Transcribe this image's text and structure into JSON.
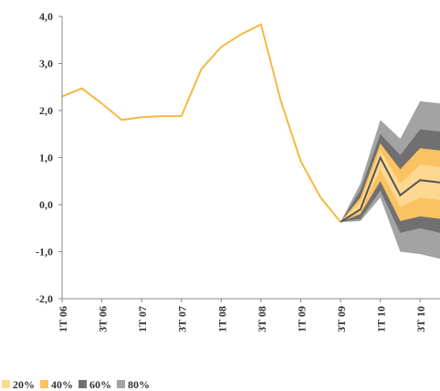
{
  "chart_data": {
    "type": "fan",
    "categories": [
      "1T 06",
      null,
      "3T 06",
      null,
      "1T 07",
      null,
      "3T 07",
      null,
      "1T 08",
      null,
      "3T 08",
      null,
      "1T 09",
      null,
      "3T 09",
      null,
      "1T 10",
      null,
      "3T 10",
      null
    ],
    "ylim": [
      -2,
      4
    ],
    "yticks": [
      {
        "value": -2,
        "label": "-2,0"
      },
      {
        "value": -1,
        "label": "-1,0"
      },
      {
        "value": 0,
        "label": "0,0"
      },
      {
        "value": 1,
        "label": "1,0"
      },
      {
        "value": 2,
        "label": "2,0"
      },
      {
        "value": 3,
        "label": "3,0"
      },
      {
        "value": 4,
        "label": "4,0"
      }
    ],
    "series": [
      {
        "color": "#f5b942",
        "values": [
          2.3,
          2.47,
          2.15,
          1.8,
          1.86,
          1.88,
          1.88,
          2.88,
          3.35,
          3.62,
          3.83,
          2.2,
          0.92,
          0.15,
          -0.37,
          null,
          null,
          null,
          null,
          null
        ]
      },
      {
        "color": "#555555",
        "values": [
          null,
          null,
          null,
          null,
          null,
          null,
          null,
          null,
          null,
          null,
          null,
          null,
          null,
          null,
          -0.37,
          -0.1,
          1.0,
          0.2,
          0.52,
          0.47
        ]
      }
    ],
    "fan": [
      {
        "name": "80%",
        "color": "#a3a3a3",
        "upper": [
          null,
          null,
          null,
          null,
          null,
          null,
          null,
          null,
          null,
          null,
          null,
          null,
          null,
          null,
          -0.37,
          0.45,
          1.8,
          1.4,
          2.2,
          2.15
        ],
        "lower": [
          null,
          null,
          null,
          null,
          null,
          null,
          null,
          null,
          null,
          null,
          null,
          null,
          null,
          null,
          -0.37,
          -0.35,
          0.15,
          -1.0,
          -1.05,
          -1.15
        ]
      },
      {
        "name": "60%",
        "color": "#707070",
        "upper": [
          null,
          null,
          null,
          null,
          null,
          null,
          null,
          null,
          null,
          null,
          null,
          null,
          null,
          null,
          -0.37,
          0.3,
          1.5,
          1.05,
          1.6,
          1.55
        ],
        "lower": [
          null,
          null,
          null,
          null,
          null,
          null,
          null,
          null,
          null,
          null,
          null,
          null,
          null,
          null,
          -0.37,
          -0.3,
          0.3,
          -0.6,
          -0.5,
          -0.6
        ]
      },
      {
        "name": "40%",
        "color": "#fbc262",
        "upper": [
          null,
          null,
          null,
          null,
          null,
          null,
          null,
          null,
          null,
          null,
          null,
          null,
          null,
          null,
          -0.37,
          0.15,
          1.3,
          0.75,
          1.2,
          1.15
        ],
        "lower": [
          null,
          null,
          null,
          null,
          null,
          null,
          null,
          null,
          null,
          null,
          null,
          null,
          null,
          null,
          -0.37,
          -0.2,
          0.5,
          -0.35,
          -0.25,
          -0.3
        ]
      },
      {
        "name": "20%",
        "color": "#fdd891",
        "upper": [
          null,
          null,
          null,
          null,
          null,
          null,
          null,
          null,
          null,
          null,
          null,
          null,
          null,
          null,
          -0.37,
          0.05,
          1.15,
          0.45,
          0.85,
          0.8
        ],
        "lower": [
          null,
          null,
          null,
          null,
          null,
          null,
          null,
          null,
          null,
          null,
          null,
          null,
          null,
          null,
          -0.37,
          -0.15,
          0.75,
          -0.05,
          0.15,
          0.1
        ]
      }
    ]
  }
}
